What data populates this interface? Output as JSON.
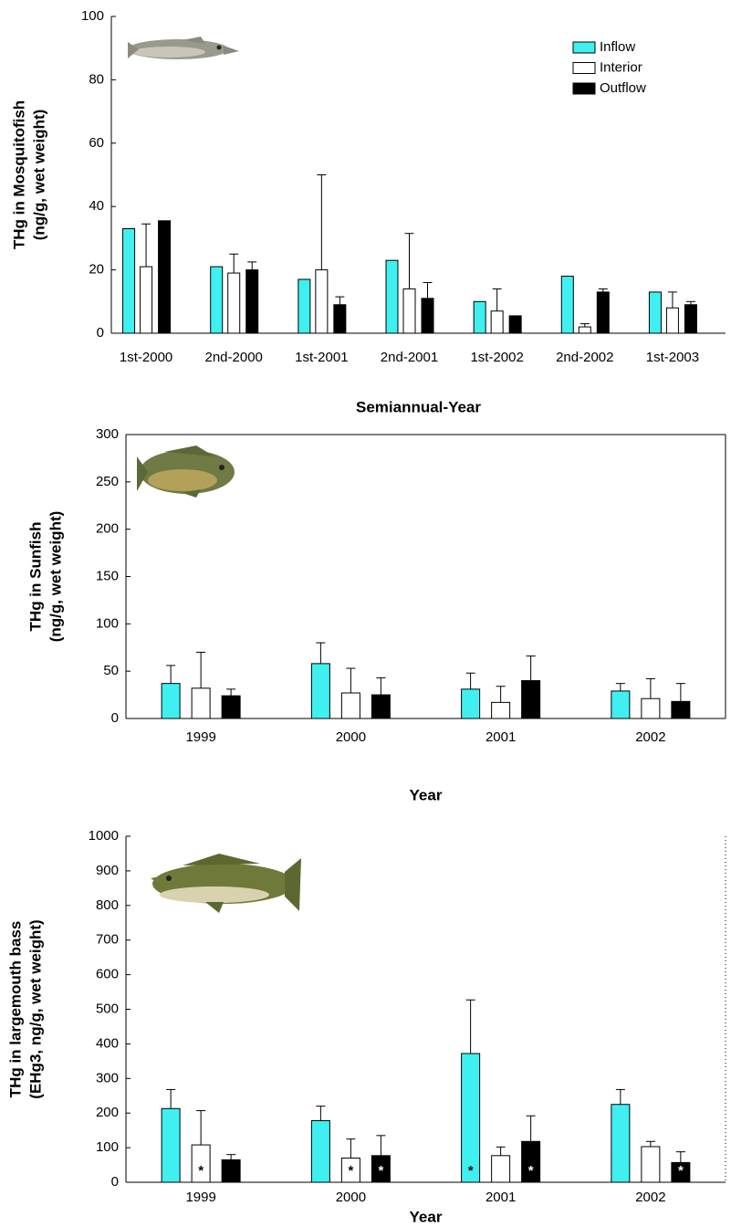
{
  "chart_data": [
    {
      "type": "bar",
      "xlabel": "Semiannual-Year",
      "ylabel": [
        "THg in Mosquitofish",
        "(ng/g, wet weight)"
      ],
      "categories": [
        "1st-2000",
        "2nd-2000",
        "1st-2001",
        "2nd-2001",
        "1st-2002",
        "2nd-2002",
        "1st-2003"
      ],
      "ylim": [
        0,
        100
      ],
      "yticks": [
        0,
        20,
        40,
        60,
        80,
        100
      ],
      "legend": "upper right",
      "series": [
        {
          "name": "Inflow",
          "color": "#40f0f0",
          "values": [
            33,
            21,
            17,
            23,
            10,
            18,
            13
          ]
        },
        {
          "name": "Interior",
          "color": "#ffffff",
          "values": [
            21,
            19,
            20,
            14,
            7,
            2,
            8
          ],
          "errors": [
            13.5,
            6,
            30,
            17.5,
            7,
            1,
            5
          ]
        },
        {
          "name": "Outflow",
          "color": "#000000",
          "values": [
            35.5,
            20,
            9,
            11,
            5.5,
            13,
            9
          ],
          "errors": [
            null,
            2.5,
            2.5,
            5,
            null,
            1,
            1
          ]
        }
      ]
    },
    {
      "type": "bar",
      "xlabel": "Year",
      "ylabel": [
        "THg in Sunfish",
        "(ng/g, wet weight)"
      ],
      "categories": [
        "1999",
        "2000",
        "2001",
        "2002"
      ],
      "ylim": [
        0,
        300
      ],
      "yticks": [
        0,
        50,
        100,
        150,
        200,
        250,
        300
      ],
      "series": [
        {
          "color": "#40f0f0",
          "values": [
            37,
            58,
            31,
            29
          ],
          "errors": [
            19,
            22,
            17,
            8
          ]
        },
        {
          "color": "#ffffff",
          "values": [
            32,
            27,
            17,
            21
          ],
          "errors": [
            38,
            26,
            17,
            21
          ]
        },
        {
          "color": "#000000",
          "values": [
            24,
            25,
            40,
            18
          ],
          "errors": [
            7,
            18,
            26,
            19
          ]
        }
      ]
    },
    {
      "type": "bar",
      "xlabel": "Year",
      "ylabel": [
        "THg in largemouth bass",
        "(EHg3, ng/g, wet weight)"
      ],
      "categories": [
        "1999",
        "2000",
        "2001",
        "2002"
      ],
      "ylim": [
        0,
        1000
      ],
      "yticks": [
        0,
        100,
        200,
        300,
        400,
        500,
        600,
        700,
        800,
        900,
        1000
      ],
      "series": [
        {
          "color": "#40f0f0",
          "values": [
            213,
            178,
            372,
            225
          ],
          "errors": [
            55,
            42,
            155,
            43
          ],
          "notes": [
            null,
            null,
            "*",
            null
          ]
        },
        {
          "color": "#ffffff",
          "values": [
            108,
            70,
            77,
            103
          ],
          "errors": [
            99,
            55,
            25,
            15
          ],
          "notes": [
            "*",
            "*",
            null,
            null
          ]
        },
        {
          "color": "#000000",
          "values": [
            65,
            77,
            118,
            57
          ],
          "errors": [
            15,
            58,
            74,
            31
          ],
          "notes": [
            null,
            "*",
            "*",
            "*"
          ]
        }
      ]
    }
  ]
}
